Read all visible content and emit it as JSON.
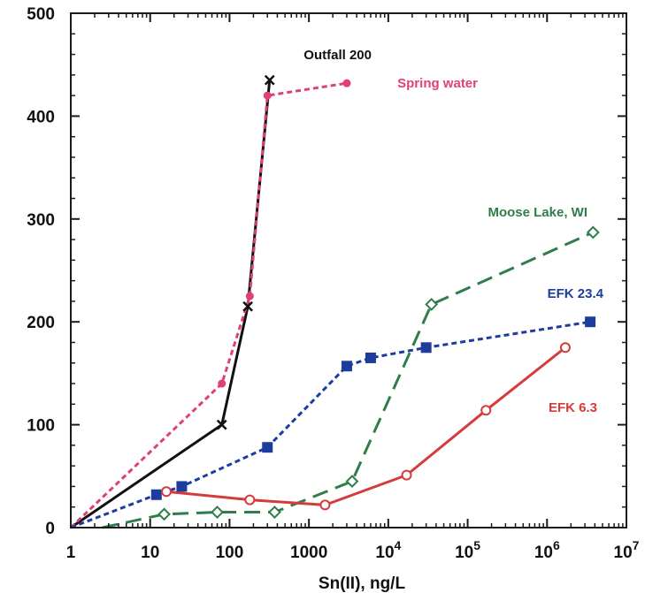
{
  "chart_data": {
    "type": "line",
    "xlabel": "Sn(II), ng/L",
    "ylabel": "",
    "x_scale": "log",
    "xlim": [
      1,
      10000000
    ],
    "ylim": [
      0,
      500
    ],
    "grid": false,
    "x_ticks": [
      {
        "value": 1,
        "label": "1"
      },
      {
        "value": 10,
        "label": "10"
      },
      {
        "value": 100,
        "label": "100"
      },
      {
        "value": 1000,
        "label": "1000"
      },
      {
        "value": 10000,
        "base": "10",
        "exp": "4"
      },
      {
        "value": 100000,
        "base": "10",
        "exp": "5"
      },
      {
        "value": 1000000,
        "base": "10",
        "exp": "6"
      },
      {
        "value": 10000000,
        "base": "10",
        "exp": "7"
      }
    ],
    "y_ticks": [
      0,
      100,
      200,
      300,
      400,
      500
    ],
    "series": [
      {
        "name": "Outfall 200",
        "color": "#111111",
        "dash": "solid",
        "marker": "x",
        "points": [
          [
            1,
            0
          ],
          [
            80,
            100
          ],
          [
            170,
            215
          ],
          [
            320,
            435
          ]
        ]
      },
      {
        "name": "Spring water",
        "color": "#e0407a",
        "dash": "dotted",
        "marker": "circle-filled",
        "points": [
          [
            1,
            0
          ],
          [
            80,
            140
          ],
          [
            180,
            225
          ],
          [
            300,
            420
          ],
          [
            3000,
            432
          ]
        ]
      },
      {
        "name": "Moose Lake, WI",
        "color": "#2e7d4a",
        "dash": "longdash",
        "marker": "diamond-open",
        "points": [
          [
            2.5,
            0
          ],
          [
            15,
            13
          ],
          [
            70,
            15
          ],
          [
            370,
            15
          ],
          [
            3500,
            45
          ],
          [
            35000,
            217
          ],
          [
            3800000,
            287
          ]
        ]
      },
      {
        "name": "EFK 23.4",
        "color": "#1c3d9e",
        "dash": "dotted",
        "marker": "square-filled",
        "points": [
          [
            1,
            0
          ],
          [
            12,
            32
          ],
          [
            25,
            40
          ],
          [
            300,
            78
          ],
          [
            3000,
            157
          ],
          [
            6000,
            165
          ],
          [
            30000,
            175
          ],
          [
            3500000,
            200
          ]
        ]
      },
      {
        "name": "EFK 6.3",
        "color": "#d63a3a",
        "dash": "solid",
        "marker": "circle-open",
        "points": [
          [
            16,
            35
          ],
          [
            180,
            27
          ],
          [
            1600,
            22
          ],
          [
            17000,
            51
          ],
          [
            170000,
            114
          ],
          [
            1700000,
            175
          ]
        ]
      }
    ]
  }
}
